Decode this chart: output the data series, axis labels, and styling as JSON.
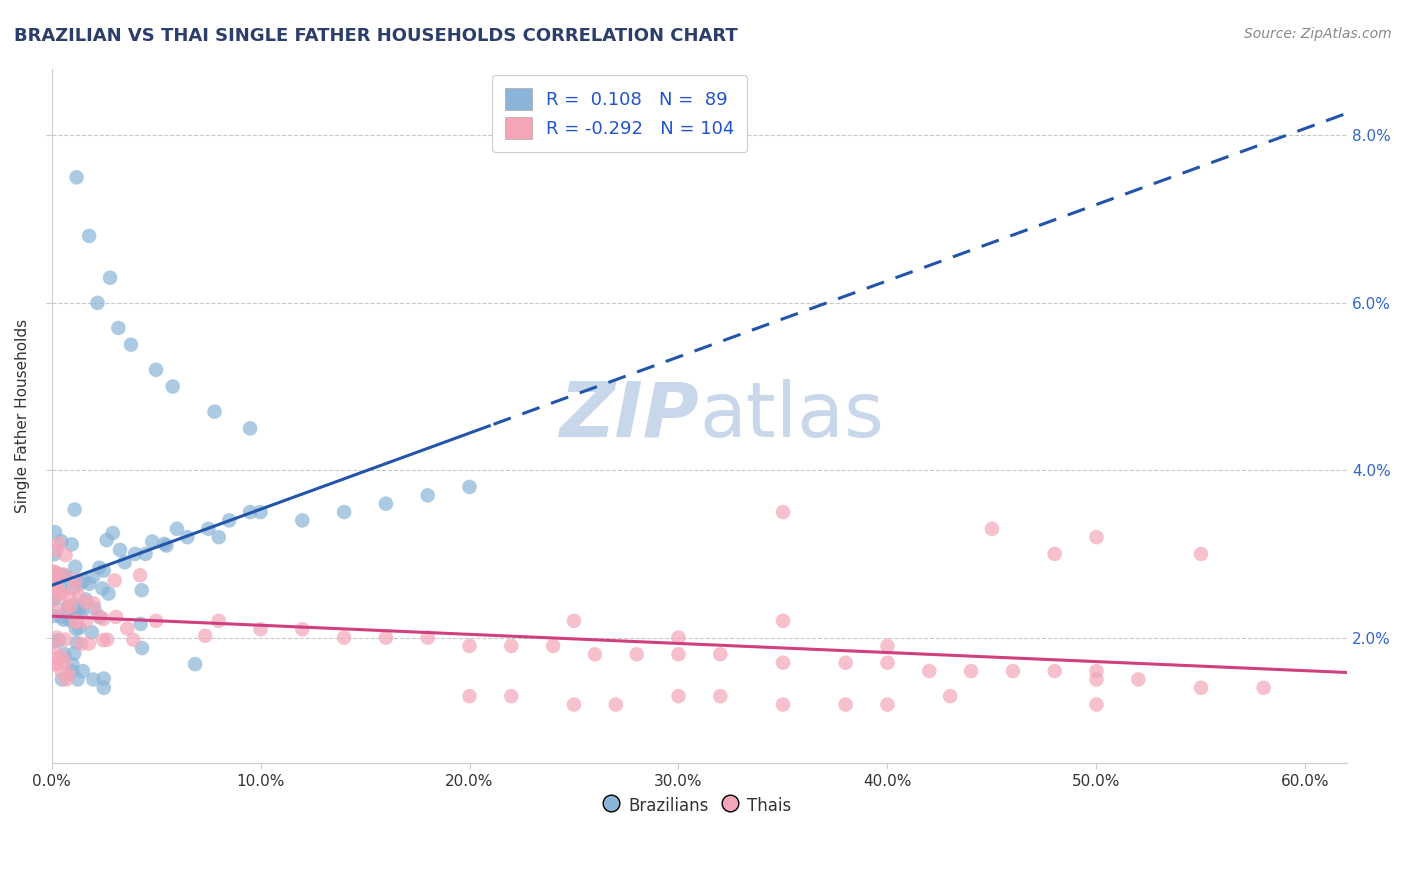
{
  "title": "BRAZILIAN VS THAI SINGLE FATHER HOUSEHOLDS CORRELATION CHART",
  "source": "Source: ZipAtlas.com",
  "ylabel": "Single Father Households",
  "xlim": [
    0.0,
    0.62
  ],
  "ylim": [
    0.005,
    0.088
  ],
  "brazil_R": 0.108,
  "brazil_N": 89,
  "thai_R": -0.292,
  "thai_N": 104,
  "brazil_color": "#8ab4d8",
  "thai_color": "#f4a6b8",
  "brazil_line_color": "#2255aa",
  "thai_line_color": "#d04080",
  "watermark_color": "#c8d8ea",
  "background_color": "#ffffff",
  "grid_color": "#bbbbbb",
  "title_color": "#2c3e6b",
  "source_color": "#888888",
  "ytick_color": "#3366cc",
  "xtick_color": "#333333",
  "legend_label_color": "#2255cc"
}
